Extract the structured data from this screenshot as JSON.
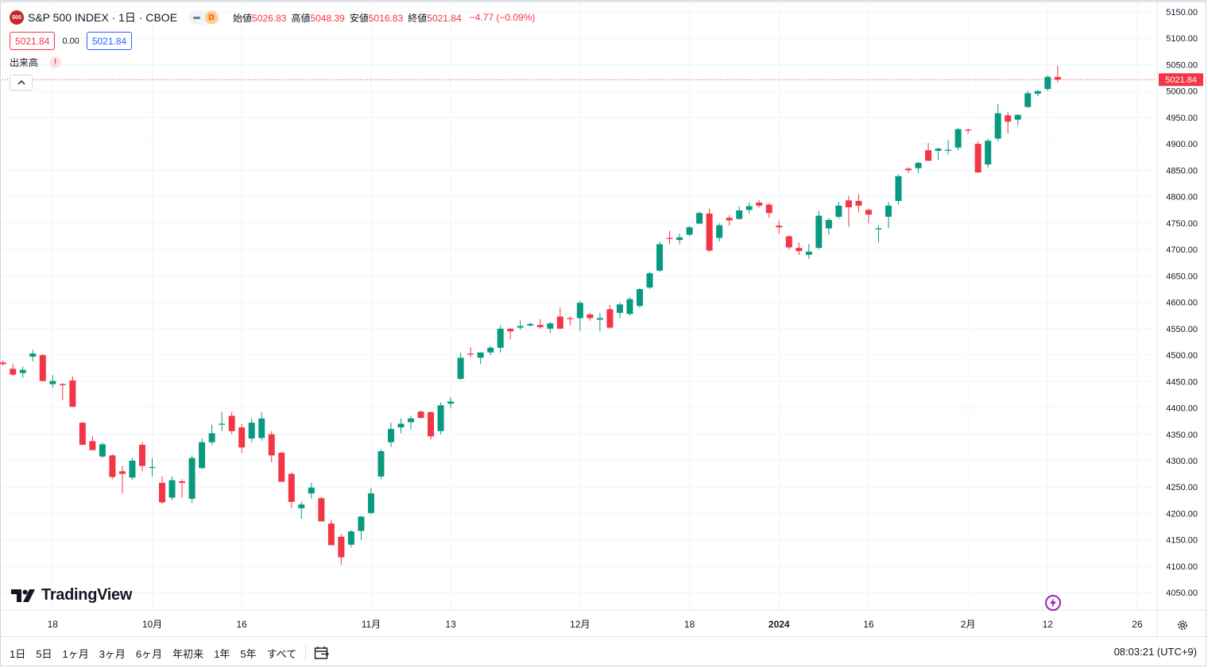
{
  "header": {
    "symbol_logo": "500",
    "symbol_title": "S&P 500 INDEX · 1日 · CBOE",
    "interval_badge": "D",
    "ohlc": [
      {
        "label": "始値",
        "value": "5026.83"
      },
      {
        "label": "高値",
        "value": "5048.39"
      },
      {
        "label": "安値",
        "value": "5016.83"
      },
      {
        "label": "終値",
        "value": "5021.84"
      }
    ],
    "change": "−4.77 (−0.09%)",
    "bid": "5021.84",
    "spread": "0.00",
    "ask": "5021.84",
    "volume_label": "出来高",
    "warning": "!"
  },
  "logo_text": "TradingView",
  "bottom_bar": {
    "ranges": [
      "1日",
      "5日",
      "1ヶ月",
      "3ヶ月",
      "6ヶ月",
      "年初来",
      "1年",
      "5年",
      "すべて"
    ],
    "clock": "08:03:21 (UTC+9)"
  },
  "colors": {
    "up": "#089981",
    "down": "#f23645",
    "grid": "#f0f3fa",
    "price_line": "#f23645"
  },
  "icons": {
    "collapse": "chevron-up-icon",
    "replay": "calendar-range-icon",
    "bolt": "lightning-icon",
    "settings": "gear-icon"
  },
  "chart_data": {
    "type": "candlestick",
    "title": "S&P 500 INDEX · 1日 · CBOE",
    "y_range": [
      4020,
      5160
    ],
    "y_ticks": [
      "5150.00",
      "5100.00",
      "5050.00",
      "5000.00",
      "4950.00",
      "4900.00",
      "4850.00",
      "4800.00",
      "4750.00",
      "4700.00",
      "4650.00",
      "4600.00",
      "4550.00",
      "4500.00",
      "4450.00",
      "4400.00",
      "4350.00",
      "4300.00",
      "4250.00",
      "4200.00",
      "4150.00",
      "4100.00",
      "4050.00"
    ],
    "x_labels": [
      "18",
      "10月",
      "16",
      "11月",
      "13",
      "12月",
      "18",
      "2024",
      "16",
      "2月",
      "12",
      "26"
    ],
    "x_label_index": [
      5,
      15,
      24,
      37,
      45,
      58,
      69,
      78,
      87,
      97,
      105,
      114
    ],
    "last_price": "5021.84",
    "last_value": 5021.84,
    "grid": true,
    "candles": [
      {
        "o": 4486,
        "h": 4490,
        "l": 4480,
        "c": 4483
      },
      {
        "o": 4474,
        "h": 4484,
        "l": 4460,
        "c": 4463
      },
      {
        "o": 4466,
        "h": 4478,
        "l": 4457,
        "c": 4472
      },
      {
        "o": 4497,
        "h": 4510,
        "l": 4488,
        "c": 4503
      },
      {
        "o": 4500,
        "h": 4502,
        "l": 4450,
        "c": 4451
      },
      {
        "o": 4445,
        "h": 4462,
        "l": 4438,
        "c": 4451
      },
      {
        "o": 4445,
        "h": 4447,
        "l": 4415,
        "c": 4443
      },
      {
        "o": 4452,
        "h": 4460,
        "l": 4402,
        "c": 4402
      },
      {
        "o": 4372,
        "h": 4373,
        "l": 4330,
        "c": 4330
      },
      {
        "o": 4337,
        "h": 4347,
        "l": 4320,
        "c": 4320
      },
      {
        "o": 4308,
        "h": 4335,
        "l": 4305,
        "c": 4331
      },
      {
        "o": 4310,
        "h": 4312,
        "l": 4265,
        "c": 4269
      },
      {
        "o": 4280,
        "h": 4290,
        "l": 4238,
        "c": 4275
      },
      {
        "o": 4268,
        "h": 4305,
        "l": 4264,
        "c": 4300
      },
      {
        "o": 4330,
        "h": 4335,
        "l": 4280,
        "c": 4290
      },
      {
        "o": 4287,
        "h": 4305,
        "l": 4270,
        "c": 4288
      },
      {
        "o": 4258,
        "h": 4270,
        "l": 4218,
        "c": 4221
      },
      {
        "o": 4230,
        "h": 4270,
        "l": 4225,
        "c": 4263
      },
      {
        "o": 4261,
        "h": 4265,
        "l": 4230,
        "c": 4258
      },
      {
        "o": 4228,
        "h": 4310,
        "l": 4220,
        "c": 4305
      },
      {
        "o": 4286,
        "h": 4342,
        "l": 4284,
        "c": 4335
      },
      {
        "o": 4335,
        "h": 4368,
        "l": 4330,
        "c": 4352
      },
      {
        "o": 4370,
        "h": 4392,
        "l": 4356,
        "c": 4370
      },
      {
        "o": 4385,
        "h": 4392,
        "l": 4350,
        "c": 4356
      },
      {
        "o": 4363,
        "h": 4370,
        "l": 4315,
        "c": 4325
      },
      {
        "o": 4342,
        "h": 4380,
        "l": 4335,
        "c": 4372
      },
      {
        "o": 4343,
        "h": 4392,
        "l": 4338,
        "c": 4380
      },
      {
        "o": 4350,
        "h": 4356,
        "l": 4297,
        "c": 4310
      },
      {
        "o": 4315,
        "h": 4317,
        "l": 4260,
        "c": 4260
      },
      {
        "o": 4275,
        "h": 4278,
        "l": 4210,
        "c": 4222
      },
      {
        "o": 4210,
        "h": 4222,
        "l": 4190,
        "c": 4217
      },
      {
        "o": 4238,
        "h": 4258,
        "l": 4228,
        "c": 4249
      },
      {
        "o": 4229,
        "h": 4231,
        "l": 4185,
        "c": 4185
      },
      {
        "o": 4181,
        "h": 4188,
        "l": 4140,
        "c": 4140
      },
      {
        "o": 4156,
        "h": 4161,
        "l": 4103,
        "c": 4117
      },
      {
        "o": 4141,
        "h": 4168,
        "l": 4136,
        "c": 4166
      },
      {
        "o": 4167,
        "h": 4196,
        "l": 4150,
        "c": 4194
      },
      {
        "o": 4201,
        "h": 4248,
        "l": 4198,
        "c": 4238
      },
      {
        "o": 4270,
        "h": 4322,
        "l": 4265,
        "c": 4318
      },
      {
        "o": 4335,
        "h": 4372,
        "l": 4326,
        "c": 4360
      },
      {
        "o": 4363,
        "h": 4380,
        "l": 4352,
        "c": 4370
      },
      {
        "o": 4373,
        "h": 4385,
        "l": 4360,
        "c": 4380
      },
      {
        "o": 4393,
        "h": 4395,
        "l": 4380,
        "c": 4381
      },
      {
        "o": 4392,
        "h": 4393,
        "l": 4340,
        "c": 4346
      },
      {
        "o": 4356,
        "h": 4410,
        "l": 4350,
        "c": 4405
      },
      {
        "o": 4408,
        "h": 4420,
        "l": 4400,
        "c": 4412
      },
      {
        "o": 4455,
        "h": 4505,
        "l": 4452,
        "c": 4495
      },
      {
        "o": 4503,
        "h": 4515,
        "l": 4496,
        "c": 4502
      },
      {
        "o": 4495,
        "h": 4505,
        "l": 4483,
        "c": 4505
      },
      {
        "o": 4505,
        "h": 4517,
        "l": 4500,
        "c": 4514
      },
      {
        "o": 4514,
        "h": 4557,
        "l": 4505,
        "c": 4550
      },
      {
        "o": 4550,
        "h": 4551,
        "l": 4530,
        "c": 4545
      },
      {
        "o": 4552,
        "h": 4566,
        "l": 4548,
        "c": 4555
      },
      {
        "o": 4556,
        "h": 4562,
        "l": 4554,
        "c": 4559
      },
      {
        "o": 4557,
        "h": 4568,
        "l": 4550,
        "c": 4553
      },
      {
        "o": 4550,
        "h": 4563,
        "l": 4542,
        "c": 4560
      },
      {
        "o": 4573,
        "h": 4590,
        "l": 4550,
        "c": 4550
      },
      {
        "o": 4570,
        "h": 4574,
        "l": 4556,
        "c": 4569
      },
      {
        "o": 4570,
        "h": 4603,
        "l": 4546,
        "c": 4599
      },
      {
        "o": 4577,
        "h": 4580,
        "l": 4565,
        "c": 4570
      },
      {
        "o": 4567,
        "h": 4580,
        "l": 4545,
        "c": 4570
      },
      {
        "o": 4587,
        "h": 4595,
        "l": 4550,
        "c": 4552
      },
      {
        "o": 4580,
        "h": 4600,
        "l": 4570,
        "c": 4596
      },
      {
        "o": 4578,
        "h": 4610,
        "l": 4575,
        "c": 4606
      },
      {
        "o": 4593,
        "h": 4627,
        "l": 4590,
        "c": 4625
      },
      {
        "o": 4628,
        "h": 4658,
        "l": 4625,
        "c": 4655
      },
      {
        "o": 4660,
        "h": 4715,
        "l": 4657,
        "c": 4710
      },
      {
        "o": 4722,
        "h": 4735,
        "l": 4710,
        "c": 4720
      },
      {
        "o": 4718,
        "h": 4730,
        "l": 4710,
        "c": 4723
      },
      {
        "o": 4728,
        "h": 4745,
        "l": 4725,
        "c": 4742
      },
      {
        "o": 4749,
        "h": 4772,
        "l": 4748,
        "c": 4769
      },
      {
        "o": 4768,
        "h": 4778,
        "l": 4695,
        "c": 4698
      },
      {
        "o": 4722,
        "h": 4750,
        "l": 4715,
        "c": 4746
      },
      {
        "o": 4760,
        "h": 4765,
        "l": 4745,
        "c": 4755
      },
      {
        "o": 4758,
        "h": 4782,
        "l": 4756,
        "c": 4774
      },
      {
        "o": 4775,
        "h": 4789,
        "l": 4768,
        "c": 4782
      },
      {
        "o": 4789,
        "h": 4794,
        "l": 4780,
        "c": 4783
      },
      {
        "o": 4785,
        "h": 4788,
        "l": 4760,
        "c": 4769
      },
      {
        "o": 4745,
        "h": 4755,
        "l": 4730,
        "c": 4742
      },
      {
        "o": 4725,
        "h": 4727,
        "l": 4700,
        "c": 4704
      },
      {
        "o": 4703,
        "h": 4713,
        "l": 4690,
        "c": 4697
      },
      {
        "o": 4690,
        "h": 4711,
        "l": 4682,
        "c": 4696
      },
      {
        "o": 4703,
        "h": 4773,
        "l": 4701,
        "c": 4764
      },
      {
        "o": 4740,
        "h": 4760,
        "l": 4728,
        "c": 4756
      },
      {
        "o": 4762,
        "h": 4790,
        "l": 4758,
        "c": 4783
      },
      {
        "o": 4793,
        "h": 4802,
        "l": 4743,
        "c": 4780
      },
      {
        "o": 4792,
        "h": 4805,
        "l": 4770,
        "c": 4783
      },
      {
        "o": 4775,
        "h": 4778,
        "l": 4750,
        "c": 4766
      },
      {
        "o": 4738,
        "h": 4745,
        "l": 4714,
        "c": 4740
      },
      {
        "o": 4762,
        "h": 4790,
        "l": 4740,
        "c": 4783
      },
      {
        "o": 4792,
        "h": 4842,
        "l": 4785,
        "c": 4839
      },
      {
        "o": 4853,
        "h": 4856,
        "l": 4845,
        "c": 4850
      },
      {
        "o": 4854,
        "h": 4866,
        "l": 4845,
        "c": 4864
      },
      {
        "o": 4888,
        "h": 4902,
        "l": 4868,
        "c": 4868
      },
      {
        "o": 4887,
        "h": 4893,
        "l": 4870,
        "c": 4891
      },
      {
        "o": 4887,
        "h": 4908,
        "l": 4880,
        "c": 4889
      },
      {
        "o": 4893,
        "h": 4930,
        "l": 4888,
        "c": 4928
      },
      {
        "o": 4927,
        "h": 4929,
        "l": 4920,
        "c": 4926
      },
      {
        "o": 4900,
        "h": 4905,
        "l": 4845,
        "c": 4846
      },
      {
        "o": 4861,
        "h": 4910,
        "l": 4855,
        "c": 4906
      },
      {
        "o": 4910,
        "h": 4975,
        "l": 4905,
        "c": 4958
      },
      {
        "o": 4954,
        "h": 4960,
        "l": 4920,
        "c": 4942
      },
      {
        "o": 4946,
        "h": 4956,
        "l": 4935,
        "c": 4955
      },
      {
        "o": 4970,
        "h": 5000,
        "l": 4968,
        "c": 4996
      },
      {
        "o": 4995,
        "h": 5002,
        "l": 4990,
        "c": 5000
      },
      {
        "o": 5004,
        "h": 5030,
        "l": 5000,
        "c": 5027
      },
      {
        "o": 5026.83,
        "h": 5048.39,
        "l": 5016.83,
        "c": 5021.84
      }
    ]
  }
}
